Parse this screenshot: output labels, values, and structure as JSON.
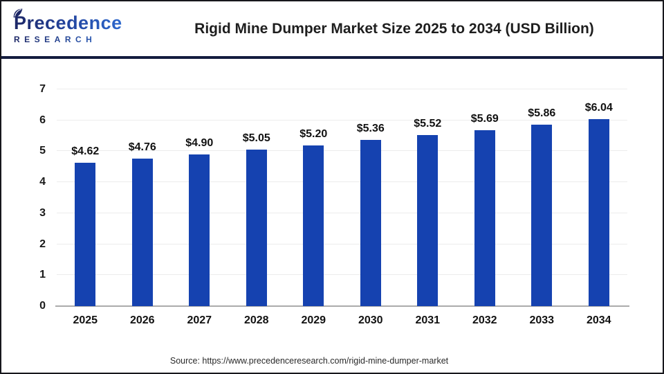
{
  "header": {
    "logo": {
      "brand": "Precedence",
      "subtitle": "RESEARCH"
    },
    "title": "Rigid Mine Dumper Market Size 2025 to 2034 (USD Billion)"
  },
  "chart_data": {
    "type": "bar",
    "title": "Rigid Mine Dumper Market Size 2025 to 2034 (USD Billion)",
    "categories": [
      "2025",
      "2026",
      "2027",
      "2028",
      "2029",
      "2030",
      "2031",
      "2032",
      "2033",
      "2034"
    ],
    "values": [
      4.62,
      4.76,
      4.9,
      5.05,
      5.2,
      5.36,
      5.52,
      5.69,
      5.86,
      6.04
    ],
    "value_labels": [
      "$4.62",
      "$4.76",
      "$4.90",
      "$5.05",
      "$5.20",
      "$5.36",
      "$5.52",
      "$5.69",
      "$5.86",
      "$6.04"
    ],
    "unit": "USD Billion",
    "xlabel": "",
    "ylabel": "",
    "ylim": [
      0,
      7
    ],
    "yticks": [
      0,
      1,
      2,
      3,
      4,
      5,
      6,
      7
    ],
    "grid": true,
    "legend": false,
    "bar_color": "#1542b0"
  },
  "footer": {
    "source": "Source: https://www.precedenceresearch.com/rigid-mine-dumper-market"
  },
  "colors": {
    "bar": "#1542b0",
    "divider": "#141c3e",
    "gridline": "#ececec",
    "axis_line": "#ababab",
    "logo_navy": "#1d2766",
    "logo_blue": "#2f6fd6"
  }
}
